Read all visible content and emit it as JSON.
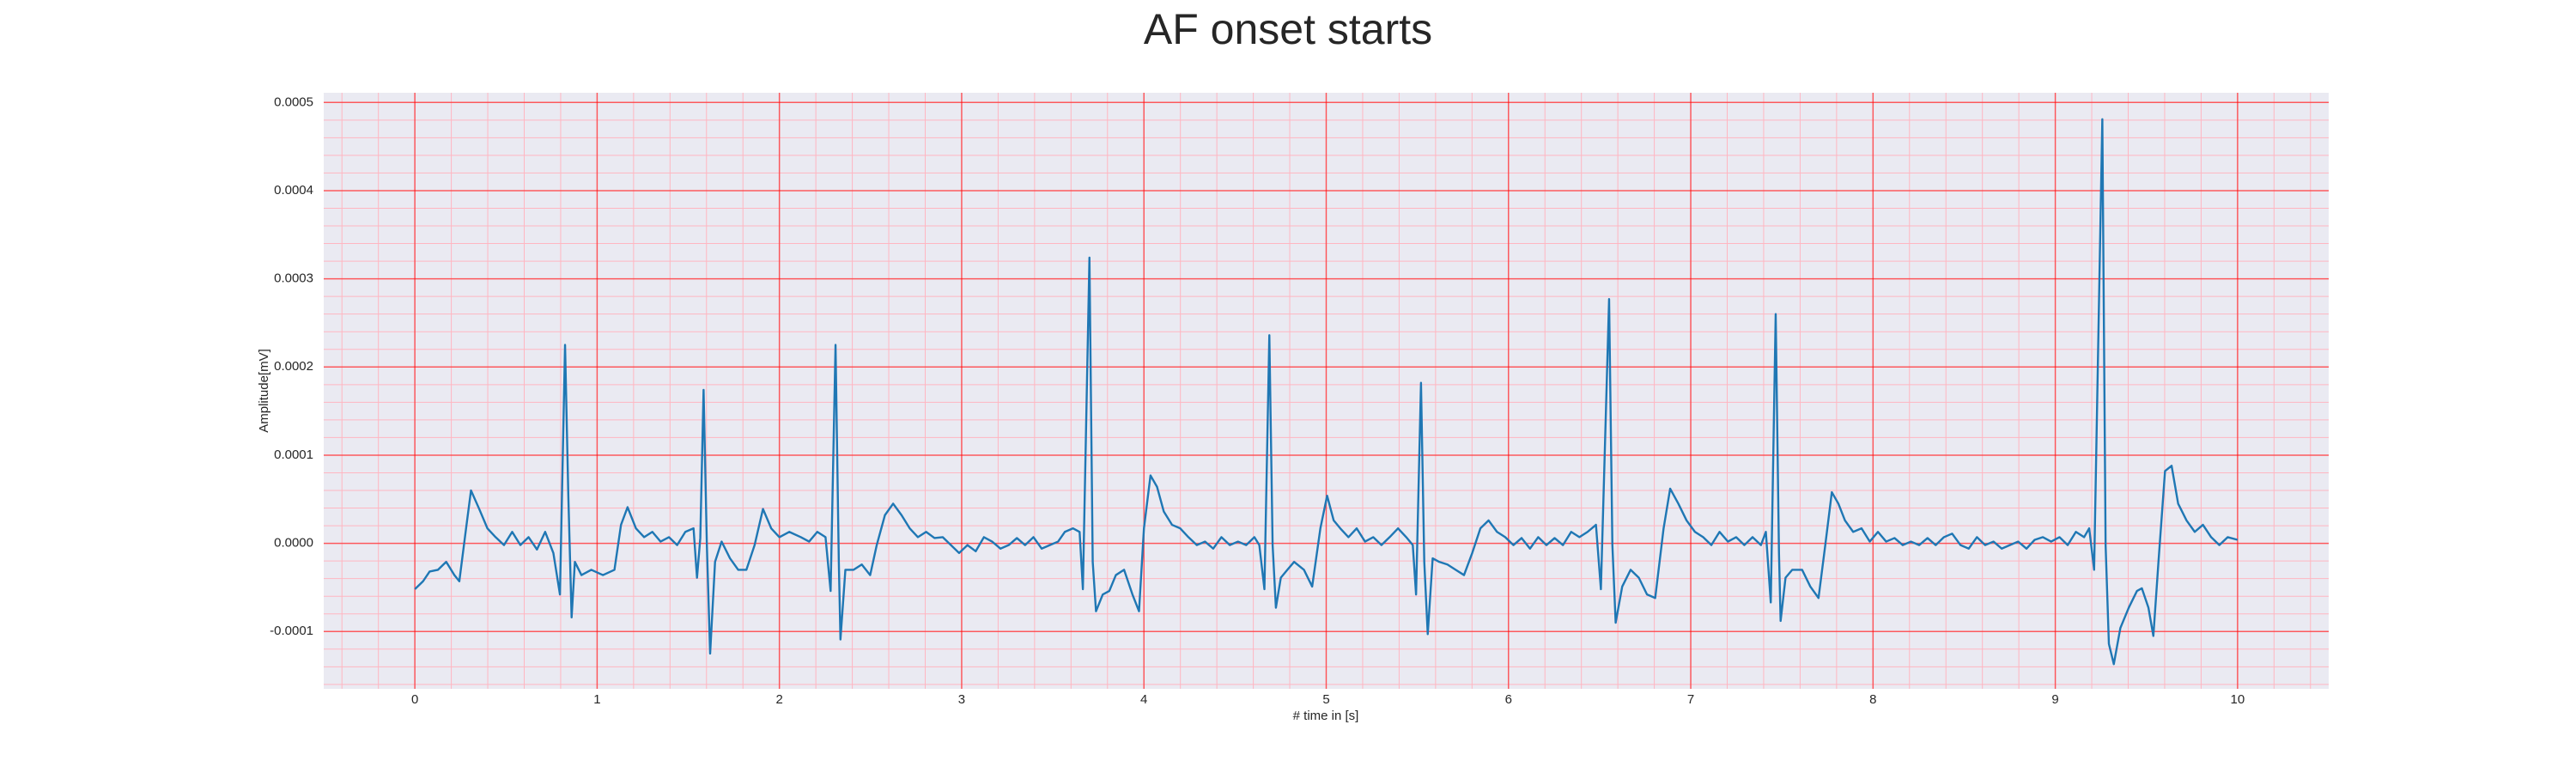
{
  "chart_data": {
    "type": "line",
    "title": "AF onset starts",
    "x_label": "# time in [s]",
    "y_label": "Amplitude[mV]",
    "color": "#1f77b4",
    "grid": true,
    "minor_grid": true,
    "xlim": [
      -0.5,
      10.5
    ],
    "ylim": [
      -0.000165,
      0.000511
    ],
    "xticks": [
      0,
      1,
      2,
      3,
      4,
      5,
      6,
      7,
      8,
      9,
      10
    ],
    "yticks": [
      -0.0001,
      {
        "value": 0,
        "label": "0.0000"
      },
      0.0001,
      0.0002,
      0.0003,
      0.0004,
      0.0005
    ],
    "x": [
      0,
      0.045,
      0.081,
      0.127,
      0.172,
      0.217,
      0.244,
      0.281,
      0.308,
      0.353,
      0.398,
      0.443,
      0.489,
      0.534,
      0.579,
      0.624,
      0.67,
      0.715,
      0.76,
      0.796,
      0.824,
      0.842,
      0.86,
      0.878,
      0.914,
      0.968,
      1.032,
      1.095,
      1.131,
      1.167,
      1.213,
      1.258,
      1.303,
      1.348,
      1.394,
      1.439,
      1.484,
      1.529,
      1.548,
      1.566,
      1.584,
      1.602,
      1.62,
      1.647,
      1.683,
      1.729,
      1.774,
      1.819,
      1.864,
      1.91,
      1.955,
      2.0,
      2.054,
      2.118,
      2.163,
      2.208,
      2.253,
      2.281,
      2.308,
      2.326,
      2.335,
      2.362,
      2.407,
      2.452,
      2.498,
      2.534,
      2.579,
      2.624,
      2.67,
      2.715,
      2.76,
      2.805,
      2.851,
      2.896,
      2.941,
      2.986,
      3.032,
      3.077,
      3.122,
      3.167,
      3.213,
      3.258,
      3.303,
      3.348,
      3.394,
      3.439,
      3.484,
      3.529,
      3.566,
      3.611,
      3.647,
      3.665,
      3.701,
      3.719,
      3.737,
      3.774,
      3.81,
      3.846,
      3.891,
      3.937,
      3.973,
      4.0,
      4.036,
      4.072,
      4.109,
      4.154,
      4.199,
      4.244,
      4.29,
      4.335,
      4.38,
      4.425,
      4.471,
      4.516,
      4.561,
      4.606,
      4.633,
      4.661,
      4.688,
      4.706,
      4.724,
      4.751,
      4.787,
      4.824,
      4.878,
      4.923,
      4.968,
      5.005,
      5.041,
      5.077,
      5.122,
      5.167,
      5.213,
      5.258,
      5.303,
      5.348,
      5.394,
      5.439,
      5.475,
      5.493,
      5.52,
      5.538,
      5.557,
      5.584,
      5.62,
      5.665,
      5.71,
      5.756,
      5.801,
      5.846,
      5.891,
      5.937,
      5.982,
      6.027,
      6.072,
      6.118,
      6.163,
      6.208,
      6.253,
      6.299,
      6.344,
      6.389,
      6.434,
      6.48,
      6.507,
      6.552,
      6.57,
      6.588,
      6.624,
      6.67,
      6.715,
      6.76,
      6.805,
      6.851,
      6.887,
      6.932,
      6.977,
      7.023,
      7.068,
      7.113,
      7.158,
      7.204,
      7.249,
      7.294,
      7.339,
      7.385,
      7.412,
      7.439,
      7.466,
      7.484,
      7.493,
      7.52,
      7.557,
      7.611,
      7.656,
      7.701,
      7.738,
      7.774,
      7.81,
      7.846,
      7.891,
      7.937,
      7.982,
      8.027,
      8.072,
      8.118,
      8.163,
      8.208,
      8.253,
      8.299,
      8.344,
      8.389,
      8.434,
      8.48,
      8.525,
      8.57,
      8.615,
      8.661,
      8.706,
      8.751,
      8.796,
      8.842,
      8.887,
      8.932,
      8.977,
      9.023,
      9.068,
      9.113,
      9.158,
      9.186,
      9.213,
      9.258,
      9.276,
      9.294,
      9.321,
      9.357,
      9.403,
      9.448,
      9.475,
      9.511,
      9.538,
      9.566,
      9.602,
      9.638,
      9.674,
      9.72,
      9.765,
      9.81,
      9.855,
      9.9,
      9.946,
      10.0
    ],
    "values": [
      -5.2e-05,
      -4.3e-05,
      -3.2e-05,
      -3e-05,
      -2.1e-05,
      -3.6e-05,
      -4.3e-05,
      1.7e-05,
      6e-05,
      3.9e-05,
      1.7e-05,
      7e-06,
      -2e-06,
      1.3e-05,
      -2e-06,
      7e-06,
      -7e-06,
      1.3e-05,
      -1.1e-05,
      -5.8e-05,
      0.000225,
      5.4e-05,
      -8.4e-05,
      -2.1e-05,
      -3.6e-05,
      -3e-05,
      -3.6e-05,
      -3e-05,
      2.1e-05,
      4.1e-05,
      1.7e-05,
      7e-06,
      1.3e-05,
      2e-06,
      7e-06,
      -2e-06,
      1.3e-05,
      1.7e-05,
      -3.9e-05,
      6e-06,
      0.000174,
      -2e-06,
      -0.000125,
      -2.1e-05,
      2e-06,
      -1.7e-05,
      -3e-05,
      -3e-05,
      -2e-06,
      3.9e-05,
      1.7e-05,
      7e-06,
      1.3e-05,
      7e-06,
      2e-06,
      1.3e-05,
      7e-06,
      -5.4e-05,
      0.000225,
      -2.1e-05,
      -0.000109,
      -3e-05,
      -3e-05,
      -2.4e-05,
      -3.6e-05,
      -2e-06,
      3.2e-05,
      4.5e-05,
      3.2e-05,
      1.7e-05,
      7e-06,
      1.3e-05,
      6e-06,
      7e-06,
      -2e-06,
      -1.1e-05,
      -2e-06,
      -9e-06,
      7e-06,
      2e-06,
      -6e-06,
      -2e-06,
      6e-06,
      -2e-06,
      7e-06,
      -6e-06,
      -2e-06,
      2e-06,
      1.3e-05,
      1.7e-05,
      1.3e-05,
      -5.2e-05,
      0.000324,
      -2.1e-05,
      -7.7e-05,
      -5.8e-05,
      -5.4e-05,
      -3.6e-05,
      -3e-05,
      -5.8e-05,
      -7.7e-05,
      1.7e-05,
      7.7e-05,
      6.4e-05,
      3.6e-05,
      2.1e-05,
      1.7e-05,
      7e-06,
      -2e-06,
      2e-06,
      -6e-06,
      7e-06,
      -2e-06,
      2e-06,
      -2e-06,
      7e-06,
      -2e-06,
      -5.2e-05,
      0.000236,
      -2e-06,
      -7.3e-05,
      -3.9e-05,
      -3e-05,
      -2.1e-05,
      -3e-05,
      -4.9e-05,
      1.7e-05,
      5.4e-05,
      2.6e-05,
      1.7e-05,
      7e-06,
      1.7e-05,
      2e-06,
      7e-06,
      -2e-06,
      7e-06,
      1.7e-05,
      7e-06,
      -2e-06,
      -5.8e-05,
      0.000182,
      -2.1e-05,
      -0.000103,
      -1.7e-05,
      -2.1e-05,
      -2.4e-05,
      -3e-05,
      -3.6e-05,
      -1.1e-05,
      1.7e-05,
      2.6e-05,
      1.3e-05,
      7e-06,
      -2e-06,
      6e-06,
      -6e-06,
      7e-06,
      -2e-06,
      6e-06,
      -2e-06,
      1.3e-05,
      7e-06,
      1.3e-05,
      2.1e-05,
      -5.2e-05,
      0.000277,
      -2e-06,
      -9e-05,
      -4.9e-05,
      -3e-05,
      -3.9e-05,
      -5.8e-05,
      -6.2e-05,
      1.7e-05,
      6.2e-05,
      4.5e-05,
      2.6e-05,
      1.3e-05,
      7e-06,
      -2e-06,
      1.3e-05,
      2e-06,
      7e-06,
      -2e-06,
      7e-06,
      -2e-06,
      1.3e-05,
      -6.7e-05,
      0.00026,
      -1.1e-05,
      -8.8e-05,
      -3.9e-05,
      -3e-05,
      -3e-05,
      -4.9e-05,
      -6.2e-05,
      -2e-06,
      5.8e-05,
      4.5e-05,
      2.6e-05,
      1.3e-05,
      1.7e-05,
      2e-06,
      1.3e-05,
      2e-06,
      6e-06,
      -2e-06,
      2e-06,
      -2e-06,
      6e-06,
      -2e-06,
      7e-06,
      1.1e-05,
      -2e-06,
      -6e-06,
      7e-06,
      -2e-06,
      2e-06,
      -6e-06,
      -2e-06,
      2e-06,
      -6e-06,
      4e-06,
      7e-06,
      2e-06,
      7e-06,
      -2e-06,
      1.3e-05,
      7e-06,
      1.7e-05,
      -3e-05,
      0.000481,
      -2e-06,
      -0.000114,
      -0.000137,
      -9.6e-05,
      -7.3e-05,
      -5.4e-05,
      -5.1e-05,
      -7.3e-05,
      -0.000105,
      -2.1e-05,
      8.2e-05,
      8.8e-05,
      4.5e-05,
      2.6e-05,
      1.3e-05,
      2.1e-05,
      7e-06,
      -2e-06,
      7e-06,
      4e-06
    ]
  }
}
